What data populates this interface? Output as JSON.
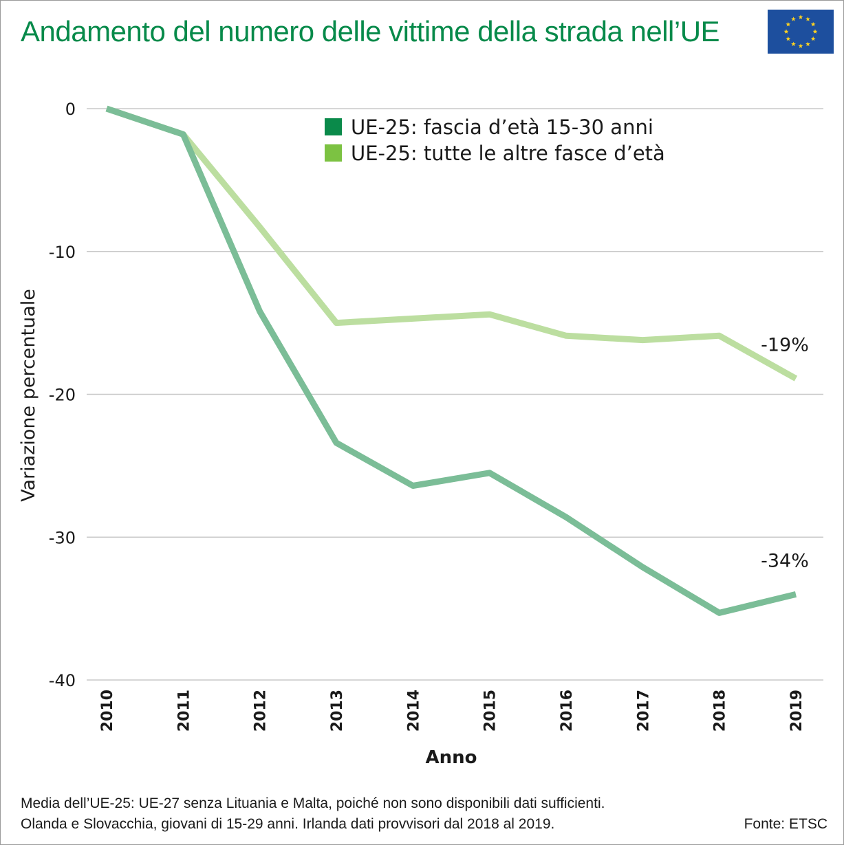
{
  "header": {
    "title": "Andamento del numero delle vittime della strada nell’UE",
    "flag_colors": {
      "field": "#1d4f9e",
      "stars": "#ffd320"
    }
  },
  "chart_data": {
    "type": "line",
    "title": "Andamento del numero delle vittime della strada nell’UE",
    "xlabel": "Anno",
    "ylabel": "Variazione percentuale",
    "x": [
      "2010",
      "2011",
      "2012",
      "2013",
      "2014",
      "2015",
      "2016",
      "2017",
      "2018",
      "2019"
    ],
    "ylim": [
      -40,
      0
    ],
    "yticks": [
      0,
      -10,
      -20,
      -30,
      -40
    ],
    "grid": true,
    "legend_position": "top-center",
    "series": [
      {
        "name": "UE-25: fascia d’età 15-30 anni",
        "legend_color": "#0a8a4a",
        "line_color": "#7bbd97",
        "values": [
          0,
          -1.8,
          -14.2,
          -23.4,
          -26.4,
          -25.5,
          -28.6,
          -32.1,
          -35.3,
          -34.0
        ],
        "end_label": "-34%"
      },
      {
        "name": "UE-25: tutte le altre fasce d’età",
        "legend_color": "#7cc242",
        "line_color": "#bcdea0",
        "values": [
          0,
          -1.8,
          -8.3,
          -15.0,
          -14.7,
          -14.4,
          -15.9,
          -16.2,
          -15.9,
          -18.9
        ],
        "end_label": "-19%"
      }
    ]
  },
  "footer": {
    "note_line1": "Media dell’UE-25: UE-27 senza Lituania e Malta, poiché non sono disponibili dati sufficienti.",
    "note_line2": "Olanda e Slovacchia, giovani di 15-29 anni. Irlanda dati provvisori dal 2018 al 2019.",
    "source": "Fonte: ETSC"
  }
}
